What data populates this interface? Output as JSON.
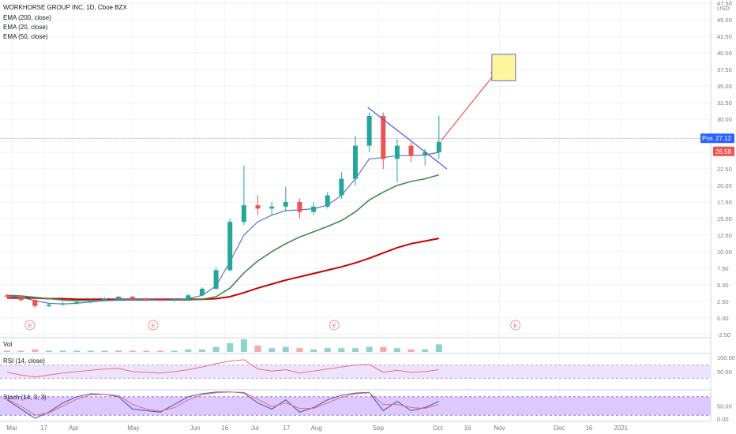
{
  "colors": {
    "up": "#26a69a",
    "down": "#ef5350",
    "ema200": "#cc0000",
    "ema20": "#5b74c4",
    "ema50": "#3f8a4a",
    "trendline": "#5b5bd6",
    "arrow": "#e53935",
    "target_box_fill": "#fff59d",
    "target_box_stroke": "#5b74c4",
    "rsi_line": "#e57373",
    "rsi_band": "#ede3ff",
    "stoch_band": "#ddc8ff",
    "stoch_k": "#3f51b5",
    "stoch_d": "#e57373",
    "post_tag": "#2962ff",
    "last_tag": "#ef5350"
  },
  "chart_data": {
    "type": "candlestick",
    "title": "WORKHORSE GROUP INC, 1D, Cboe BZX",
    "legend": [
      "EMA (200, close)",
      "EMA (20, close)",
      "EMA (50, close)"
    ],
    "currency": "USD",
    "y_ticks": [
      "47.50",
      "45.00",
      "42.50",
      "40.00",
      "37.50",
      "35.00",
      "32.50",
      "30.00",
      "25.00",
      "22.50",
      "20.00",
      "17.50",
      "15.00",
      "12.50",
      "10.00",
      "7.50",
      "5.00",
      "2.50",
      "0.00",
      "-2.50"
    ],
    "x_ticks": [
      "Mar",
      "17",
      "Apr",
      "May",
      "Jun",
      "16",
      "Jul",
      "17",
      "Aug",
      "Sep",
      "Oct",
      "16",
      "Nov",
      "Dec",
      "16",
      "2021"
    ],
    "post_label": "Post",
    "post_price": "27.12",
    "last_price": "26.58",
    "earnings_marker": "E",
    "earnings_dates": [
      "2020-03-10",
      "2020-05-11",
      "2020-08-10",
      "2020-11-09"
    ],
    "start_date": "2020-02-24",
    "ylim": [
      -3,
      48
    ],
    "ohlc_weekly": [
      {
        "o": 3.4,
        "h": 3.6,
        "l": 3.0,
        "c": 3.2
      },
      {
        "o": 3.2,
        "h": 3.3,
        "l": 2.5,
        "c": 2.7
      },
      {
        "o": 2.7,
        "h": 2.8,
        "l": 1.5,
        "c": 1.8
      },
      {
        "o": 1.8,
        "h": 2.2,
        "l": 1.6,
        "c": 2.0
      },
      {
        "o": 2.0,
        "h": 2.4,
        "l": 1.8,
        "c": 2.2
      },
      {
        "o": 2.2,
        "h": 2.6,
        "l": 2.0,
        "c": 2.4
      },
      {
        "o": 2.4,
        "h": 2.8,
        "l": 2.2,
        "c": 2.7
      },
      {
        "o": 2.7,
        "h": 3.1,
        "l": 2.5,
        "c": 2.9
      },
      {
        "o": 2.9,
        "h": 3.3,
        "l": 2.7,
        "c": 3.2
      },
      {
        "o": 3.2,
        "h": 3.3,
        "l": 2.7,
        "c": 2.8
      },
      {
        "o": 2.8,
        "h": 3.0,
        "l": 2.5,
        "c": 2.7
      },
      {
        "o": 2.7,
        "h": 2.9,
        "l": 2.5,
        "c": 2.6
      },
      {
        "o": 2.6,
        "h": 3.0,
        "l": 2.4,
        "c": 2.8
      },
      {
        "o": 2.8,
        "h": 3.6,
        "l": 2.7,
        "c": 3.4
      },
      {
        "o": 3.4,
        "h": 4.6,
        "l": 3.3,
        "c": 4.4
      },
      {
        "o": 4.4,
        "h": 7.6,
        "l": 4.2,
        "c": 7.2
      },
      {
        "o": 7.2,
        "h": 15.0,
        "l": 7.0,
        "c": 14.5
      },
      {
        "o": 14.5,
        "h": 23.0,
        "l": 14.0,
        "c": 17.0
      },
      {
        "o": 17.0,
        "h": 18.5,
        "l": 15.5,
        "c": 16.5
      },
      {
        "o": 16.5,
        "h": 17.5,
        "l": 15.5,
        "c": 16.8
      },
      {
        "o": 16.8,
        "h": 19.8,
        "l": 16.2,
        "c": 17.5
      },
      {
        "o": 17.5,
        "h": 18.0,
        "l": 15.0,
        "c": 16.0
      },
      {
        "o": 16.0,
        "h": 17.5,
        "l": 15.5,
        "c": 16.8
      },
      {
        "o": 16.8,
        "h": 19.0,
        "l": 16.5,
        "c": 18.5
      },
      {
        "o": 18.5,
        "h": 22.0,
        "l": 18.0,
        "c": 21.0
      },
      {
        "o": 21.0,
        "h": 27.5,
        "l": 20.0,
        "c": 26.0
      },
      {
        "o": 26.0,
        "h": 31.0,
        "l": 25.0,
        "c": 30.5
      },
      {
        "o": 30.5,
        "h": 31.0,
        "l": 22.5,
        "c": 24.0
      },
      {
        "o": 24.0,
        "h": 27.0,
        "l": 20.5,
        "c": 26.0
      },
      {
        "o": 26.0,
        "h": 26.5,
        "l": 23.5,
        "c": 24.5
      },
      {
        "o": 24.5,
        "h": 25.5,
        "l": 23.0,
        "c": 25.0
      },
      {
        "o": 25.0,
        "h": 30.5,
        "l": 24.0,
        "c": 26.58
      }
    ],
    "ema20": [
      3.3,
      3.1,
      2.6,
      2.2,
      2.1,
      2.2,
      2.4,
      2.6,
      2.8,
      2.8,
      2.8,
      2.7,
      2.7,
      2.9,
      3.4,
      4.8,
      8.5,
      12.5,
      14.5,
      15.5,
      16.2,
      16.3,
      16.5,
      17.0,
      18.5,
      21.0,
      24.0,
      24.2,
      24.5,
      24.5,
      24.6,
      25.0
    ],
    "ema50": [
      3.4,
      3.3,
      3.1,
      2.9,
      2.7,
      2.6,
      2.6,
      2.6,
      2.7,
      2.7,
      2.7,
      2.7,
      2.7,
      2.7,
      2.8,
      3.2,
      4.5,
      6.8,
      8.6,
      10.0,
      11.2,
      12.2,
      13.0,
      13.8,
      14.7,
      16.0,
      17.8,
      19.0,
      20.0,
      20.6,
      21.0,
      21.6
    ],
    "ema200": [
      3.0,
      3.0,
      3.0,
      2.9,
      2.9,
      2.8,
      2.8,
      2.8,
      2.8,
      2.8,
      2.8,
      2.8,
      2.8,
      2.8,
      2.8,
      2.9,
      3.2,
      3.8,
      4.5,
      5.1,
      5.7,
      6.2,
      6.7,
      7.2,
      7.7,
      8.3,
      9.0,
      9.8,
      10.6,
      11.2,
      11.6,
      12.0
    ],
    "volume_label": "Vol",
    "volume_relative": [
      0.1,
      0.1,
      0.2,
      0.1,
      0.1,
      0.1,
      0.1,
      0.1,
      0.1,
      0.1,
      0.1,
      0.1,
      0.1,
      0.2,
      0.2,
      0.4,
      0.7,
      1.0,
      0.5,
      0.3,
      0.4,
      0.3,
      0.2,
      0.3,
      0.3,
      0.3,
      0.4,
      0.4,
      0.3,
      0.2,
      0.2,
      0.6
    ],
    "rsi_label": "RSI (14, close)",
    "rsi_ticks": [
      "100.00",
      "50.00"
    ],
    "rsi_values": [
      48,
      40,
      34,
      40,
      46,
      50,
      54,
      58,
      60,
      50,
      48,
      46,
      50,
      56,
      64,
      74,
      82,
      86,
      58,
      52,
      56,
      46,
      52,
      58,
      64,
      70,
      72,
      48,
      54,
      48,
      50,
      56
    ],
    "stoch_label": "Stoch (14, 3, 3)",
    "stoch_ticks": [
      "50.00",
      "0.00"
    ],
    "stoch_k": [
      70,
      40,
      10,
      30,
      60,
      80,
      90,
      88,
      80,
      40,
      35,
      30,
      55,
      80,
      90,
      95,
      96,
      92,
      60,
      40,
      70,
      30,
      45,
      70,
      85,
      92,
      94,
      35,
      65,
      35,
      45,
      65
    ],
    "stoch_d": [
      72,
      50,
      20,
      28,
      50,
      72,
      86,
      88,
      84,
      55,
      40,
      33,
      45,
      70,
      86,
      93,
      95,
      94,
      72,
      48,
      60,
      42,
      42,
      60,
      78,
      89,
      93,
      55,
      55,
      45,
      42,
      55
    ]
  }
}
